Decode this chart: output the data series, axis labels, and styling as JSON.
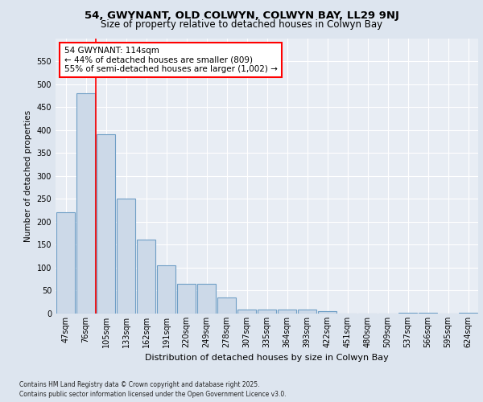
{
  "title1": "54, GWYNANT, OLD COLWYN, COLWYN BAY, LL29 9NJ",
  "title2": "Size of property relative to detached houses in Colwyn Bay",
  "xlabel": "Distribution of detached houses by size in Colwyn Bay",
  "ylabel": "Number of detached properties",
  "categories": [
    "47sqm",
    "76sqm",
    "105sqm",
    "133sqm",
    "162sqm",
    "191sqm",
    "220sqm",
    "249sqm",
    "278sqm",
    "307sqm",
    "335sqm",
    "364sqm",
    "393sqm",
    "422sqm",
    "451sqm",
    "480sqm",
    "509sqm",
    "537sqm",
    "566sqm",
    "595sqm",
    "624sqm"
  ],
  "values": [
    220,
    480,
    390,
    250,
    162,
    105,
    65,
    65,
    35,
    8,
    8,
    8,
    8,
    5,
    0,
    0,
    0,
    2,
    2,
    0,
    2
  ],
  "bar_color": "#ccd9e8",
  "bar_edge_color": "#6e9ec5",
  "redline_x": 1.5,
  "annotation_text_line1": "54 GWYNANT: 114sqm",
  "annotation_text_line2": "← 44% of detached houses are smaller (809)",
  "annotation_text_line3": "55% of semi-detached houses are larger (1,002) →",
  "footer1": "Contains HM Land Registry data © Crown copyright and database right 2025.",
  "footer2": "Contains public sector information licensed under the Open Government Licence v3.0.",
  "ylim": [
    0,
    600
  ],
  "yticks": [
    0,
    50,
    100,
    150,
    200,
    250,
    300,
    350,
    400,
    450,
    500,
    550
  ],
  "bg_color": "#dde5ef",
  "plot_bg": "#e8edf4",
  "title1_fontsize": 9.5,
  "title2_fontsize": 8.5,
  "xlabel_fontsize": 8,
  "ylabel_fontsize": 7.5,
  "tick_fontsize": 7,
  "ann_fontsize": 7.5,
  "footer_fontsize": 5.5
}
